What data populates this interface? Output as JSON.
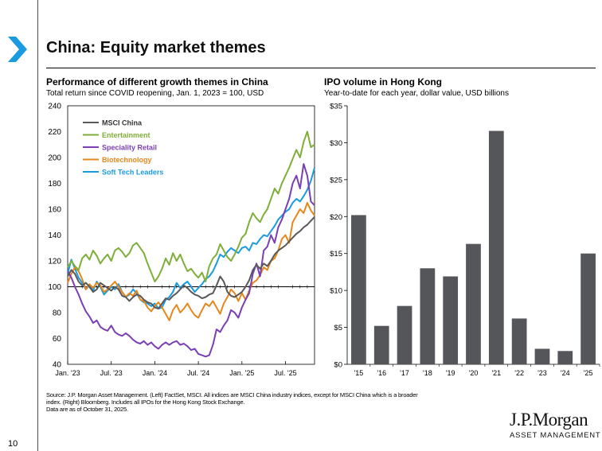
{
  "page": {
    "title": "China: Equity market themes",
    "page_number": "10",
    "accent_color": "#1a9be0"
  },
  "left_panel": {
    "title": "Performance of different growth themes in China",
    "subtitle": "Total return since COVID reopening, Jan. 1, 2023 = 100, USD"
  },
  "right_panel": {
    "title": "IPO volume in Hong Kong",
    "subtitle": "Year-to-date for each year, dollar value, USD billions"
  },
  "chart_data": [
    {
      "type": "line",
      "title": "Performance of different growth themes in China",
      "subtitle": "Total return since COVID reopening, Jan. 1, 2023 = 100, USD",
      "ylim": [
        40,
        240
      ],
      "yticks": [
        40,
        60,
        80,
        100,
        120,
        140,
        160,
        180,
        200,
        220,
        240
      ],
      "xlim": [
        0,
        34
      ],
      "xtick_labels": [
        "Jan. '23",
        "Jul. '23",
        "Jan. '24",
        "Jul. '24",
        "Jan. '25",
        "Jul. '25"
      ],
      "xtick_pos": [
        0,
        6,
        12,
        18,
        24,
        30
      ],
      "reference_line": 100,
      "legend_position": "top-left",
      "series": [
        {
          "name": "MSCI China",
          "color": "#595959",
          "x": [
            0,
            0.5,
            1,
            1.5,
            2,
            2.5,
            3,
            3.5,
            4,
            4.5,
            5,
            5.5,
            6,
            6.5,
            7,
            7.5,
            8,
            8.5,
            9,
            9.5,
            10,
            10.5,
            11,
            11.5,
            12,
            12.5,
            13,
            13.5,
            14,
            14.5,
            15,
            15.5,
            16,
            16.5,
            17,
            17.5,
            18,
            18.5,
            19,
            19.5,
            20,
            20.5,
            21,
            21.5,
            22,
            22.5,
            23,
            23.5,
            24,
            24.5,
            25,
            25.5,
            26,
            26.5,
            27,
            27.5,
            28,
            28.5,
            29,
            29.5,
            30,
            30.5,
            31,
            31.5,
            32,
            32.5,
            33,
            33.5,
            34
          ],
          "values": [
            108,
            113,
            110,
            104,
            101,
            103,
            100,
            96,
            98,
            103,
            101,
            99,
            97,
            100,
            98,
            93,
            92,
            89,
            92,
            94,
            93,
            90,
            88,
            87,
            84,
            83,
            87,
            91,
            90,
            93,
            95,
            98,
            101,
            99,
            96,
            94,
            93,
            91,
            92,
            94,
            95,
            101,
            108,
            104,
            96,
            93,
            92,
            94,
            96,
            100,
            105,
            113,
            117,
            114,
            118,
            116,
            120,
            125,
            128,
            130,
            132,
            135,
            138,
            141,
            143,
            146,
            148,
            151,
            154
          ]
        },
        {
          "name": "Entertainment",
          "color": "#7fae3a",
          "x": [
            0,
            0.5,
            1,
            1.5,
            2,
            2.5,
            3,
            3.5,
            4,
            4.5,
            5,
            5.5,
            6,
            6.5,
            7,
            7.5,
            8,
            8.5,
            9,
            9.5,
            10,
            10.5,
            11,
            11.5,
            12,
            12.5,
            13,
            13.5,
            14,
            14.5,
            15,
            15.5,
            16,
            16.5,
            17,
            17.5,
            18,
            18.5,
            19,
            19.5,
            20,
            20.5,
            21,
            21.5,
            22,
            22.5,
            23,
            23.5,
            24,
            24.5,
            25,
            25.5,
            26,
            26.5,
            27,
            27.5,
            28,
            28.5,
            29,
            29.5,
            30,
            30.5,
            31,
            31.5,
            32,
            32.5,
            33,
            33.5,
            34
          ],
          "values": [
            115,
            120,
            116,
            113,
            122,
            125,
            121,
            128,
            124,
            118,
            122,
            125,
            120,
            128,
            130,
            127,
            123,
            126,
            132,
            134,
            130,
            126,
            118,
            111,
            104,
            108,
            114,
            122,
            117,
            126,
            120,
            125,
            118,
            112,
            114,
            110,
            107,
            111,
            104,
            116,
            122,
            125,
            133,
            128,
            123,
            120,
            125,
            131,
            138,
            141,
            150,
            157,
            153,
            150,
            156,
            160,
            168,
            176,
            172,
            180,
            186,
            192,
            199,
            206,
            200,
            212,
            220,
            208,
            210
          ]
        },
        {
          "name": "Speciality Retail",
          "color": "#7a3fb5",
          "x": [
            0,
            0.5,
            1,
            1.5,
            2,
            2.5,
            3,
            3.5,
            4,
            4.5,
            5,
            5.5,
            6,
            6.5,
            7,
            7.5,
            8,
            8.5,
            9,
            9.5,
            10,
            10.5,
            11,
            11.5,
            12,
            12.5,
            13,
            13.5,
            14,
            14.5,
            15,
            15.5,
            16,
            16.5,
            17,
            17.5,
            18,
            18.5,
            19,
            19.5,
            20,
            20.5,
            21,
            21.5,
            22,
            22.5,
            23,
            23.5,
            24,
            24.5,
            25,
            25.5,
            26,
            26.5,
            27,
            27.5,
            28,
            28.5,
            29,
            29.5,
            30,
            30.5,
            31,
            31.5,
            32,
            32.5,
            33,
            33.5,
            34
          ],
          "values": [
            112,
            107,
            100,
            94,
            87,
            81,
            77,
            72,
            74,
            69,
            67,
            66,
            70,
            65,
            63,
            62,
            64,
            62,
            59,
            57,
            56,
            58,
            55,
            57,
            54,
            52,
            55,
            57,
            55,
            57,
            58,
            55,
            56,
            54,
            51,
            52,
            48,
            47,
            46,
            47,
            55,
            67,
            65,
            70,
            74,
            82,
            80,
            76,
            84,
            90,
            95,
            110,
            118,
            108,
            128,
            131,
            140,
            134,
            146,
            152,
            160,
            168,
            180,
            186,
            176,
            195,
            186,
            166,
            163
          ]
        },
        {
          "name": "Biotechnology",
          "color": "#e6871c",
          "x": [
            0,
            0.5,
            1,
            1.5,
            2,
            2.5,
            3,
            3.5,
            4,
            4.5,
            5,
            5.5,
            6,
            6.5,
            7,
            7.5,
            8,
            8.5,
            9,
            9.5,
            10,
            10.5,
            11,
            11.5,
            12,
            12.5,
            13,
            13.5,
            14,
            14.5,
            15,
            15.5,
            16,
            16.5,
            17,
            17.5,
            18,
            18.5,
            19,
            19.5,
            20,
            20.5,
            21,
            21.5,
            22,
            22.5,
            23,
            23.5,
            24,
            24.5,
            25,
            25.5,
            26,
            26.5,
            27,
            27.5,
            28,
            28.5,
            29,
            29.5,
            30,
            30.5,
            31,
            31.5,
            32,
            32.5,
            33,
            33.5,
            34
          ],
          "values": [
            103,
            110,
            115,
            112,
            106,
            98,
            102,
            99,
            103,
            101,
            96,
            98,
            101,
            104,
            100,
            96,
            92,
            95,
            93,
            97,
            90,
            89,
            84,
            81,
            85,
            88,
            84,
            79,
            74,
            82,
            86,
            80,
            83,
            87,
            82,
            78,
            76,
            82,
            87,
            85,
            89,
            84,
            79,
            87,
            92,
            98,
            95,
            89,
            95,
            90,
            97,
            103,
            105,
            109,
            115,
            113,
            120,
            122,
            128,
            137,
            140,
            134,
            150,
            155,
            160,
            157,
            165,
            159,
            155
          ]
        },
        {
          "name": "Soft Tech Leaders",
          "color": "#1a9be0",
          "x": [
            0,
            0.5,
            1,
            1.5,
            2,
            2.5,
            3,
            3.5,
            4,
            4.5,
            5,
            5.5,
            6,
            6.5,
            7,
            7.5,
            8,
            8.5,
            9,
            9.5,
            10,
            10.5,
            11,
            11.5,
            12,
            12.5,
            13,
            13.5,
            14,
            14.5,
            15,
            15.5,
            16,
            16.5,
            17,
            17.5,
            18,
            18.5,
            19,
            19.5,
            20,
            20.5,
            21,
            21.5,
            22,
            22.5,
            23,
            23.5,
            24,
            24.5,
            25,
            25.5,
            26,
            26.5,
            27,
            27.5,
            28,
            28.5,
            29,
            29.5,
            30,
            30.5,
            31,
            31.5,
            32,
            32.5,
            33,
            33.5,
            34
          ],
          "values": [
            110,
            121,
            114,
            107,
            103,
            98,
            101,
            97,
            104,
            100,
            94,
            97,
            100,
            98,
            102,
            96,
            92,
            94,
            98,
            95,
            90,
            88,
            87,
            85,
            87,
            83,
            84,
            90,
            92,
            96,
            103,
            99,
            102,
            104,
            100,
            96,
            99,
            102,
            106,
            108,
            112,
            118,
            125,
            123,
            127,
            130,
            128,
            126,
            130,
            131,
            128,
            134,
            133,
            137,
            140,
            139,
            143,
            147,
            152,
            155,
            158,
            160,
            165,
            168,
            166,
            170,
            175,
            182,
            192
          ]
        }
      ]
    },
    {
      "type": "bar",
      "title": "IPO volume in Hong Kong",
      "subtitle": "Year-to-date for each year, dollar value, USD billions",
      "categories": [
        "'15",
        "'16",
        "'17",
        "'18",
        "'19",
        "'20",
        "'21",
        "'22",
        "'23",
        "'24",
        "'25"
      ],
      "values": [
        20.2,
        5.2,
        7.9,
        13.0,
        11.9,
        16.3,
        31.6,
        6.2,
        2.1,
        1.8,
        15.0
      ],
      "ylim": [
        0,
        35
      ],
      "yticks": [
        0,
        5,
        10,
        15,
        20,
        25,
        30,
        35
      ],
      "ytick_labels": [
        "$0",
        "$5",
        "$10",
        "$15",
        "$20",
        "$25",
        "$30",
        "$35"
      ],
      "bar_color": "#545659",
      "grid": false
    }
  ],
  "footer": {
    "source_lines": [
      "Source: J.P. Morgan Asset Management. (Left) FactSet, MSCI. All indices are MSCI China industry indices, except for MSCI China which is a broader",
      "index. (Right) Bloomberg. Includes all IPOs for the Hong Kong Stock Exchange.",
      "Data are as of October 31, 2025."
    ],
    "logo_name": "J.P.Morgan",
    "logo_sub": "ASSET MANAGEMENT"
  }
}
